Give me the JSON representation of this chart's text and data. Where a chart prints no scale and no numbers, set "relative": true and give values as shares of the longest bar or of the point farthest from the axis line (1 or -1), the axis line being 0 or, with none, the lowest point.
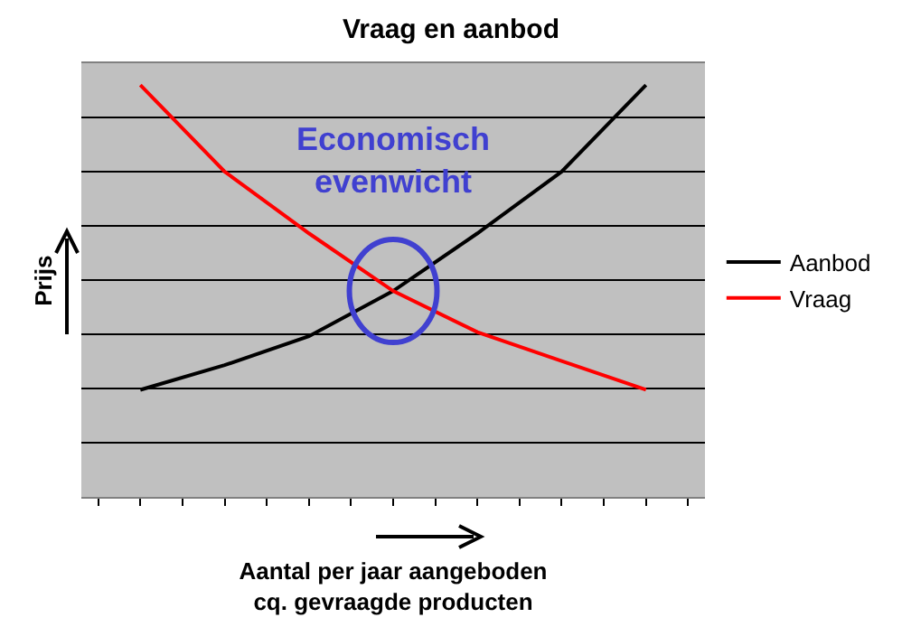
{
  "chart_data": {
    "type": "line",
    "title": "Vraag en aanbod",
    "xlabel": "Aantal per jaar aangeboden\ncq. gevraagde producten",
    "ylabel": "Prijs",
    "relative": true,
    "categories": [
      null,
      null,
      null,
      null,
      null,
      null,
      null
    ],
    "series": [
      {
        "name": "Aanbod",
        "color": "#000000",
        "values": [
          0.26,
          0.32,
          0.39,
          0.5,
          0.64,
          0.79,
          1
        ]
      },
      {
        "name": "Vraag",
        "color": "#ff0000",
        "values": [
          1,
          0.79,
          0.64,
          0.5,
          0.4,
          0.33,
          0.26
        ]
      }
    ],
    "annotations": [
      "Economisch\nevenwicht"
    ],
    "grid": "y",
    "legend": "right",
    "marker": "none",
    "line_style": "solid",
    "tick_labels": false
  }
}
